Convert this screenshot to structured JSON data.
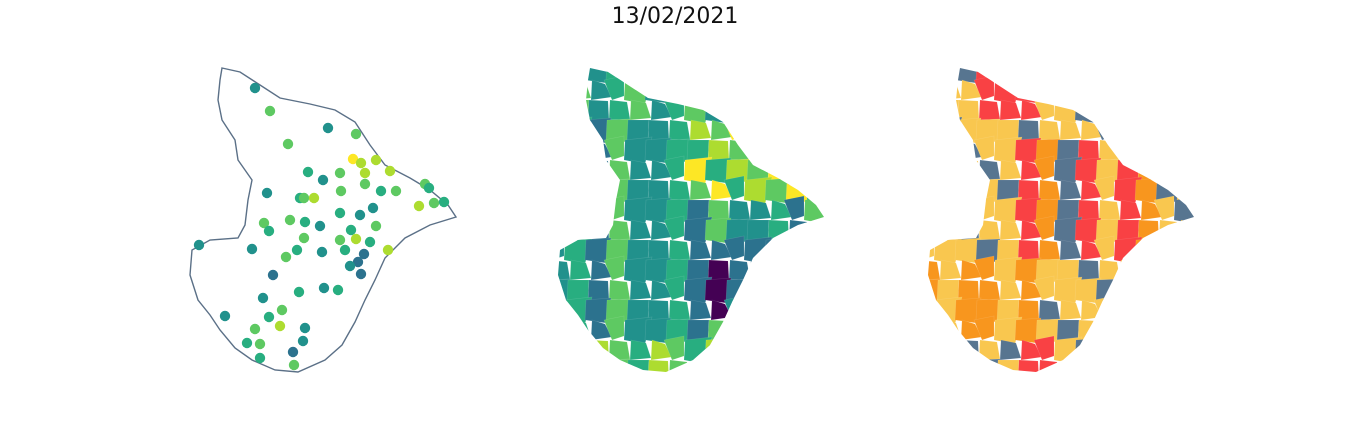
{
  "figure": {
    "title": "13/02/2021"
  },
  "colors": {
    "outline": "#5b7087",
    "viridis": [
      "#440154",
      "#3b528b",
      "#2c728e",
      "#21918c",
      "#28ae80",
      "#5ec962",
      "#addc30",
      "#fde725"
    ],
    "alert": {
      "red": "#f94144",
      "orange": "#f8961e",
      "yellow": "#f9c74f",
      "slate": "#577590"
    }
  },
  "panels": [
    {
      "name": "points-map",
      "style": "outline-with-points"
    },
    {
      "name": "viridis-choropleth",
      "style": "choropleth-continuous"
    },
    {
      "name": "alert-choropleth",
      "style": "choropleth-categorical"
    }
  ]
}
